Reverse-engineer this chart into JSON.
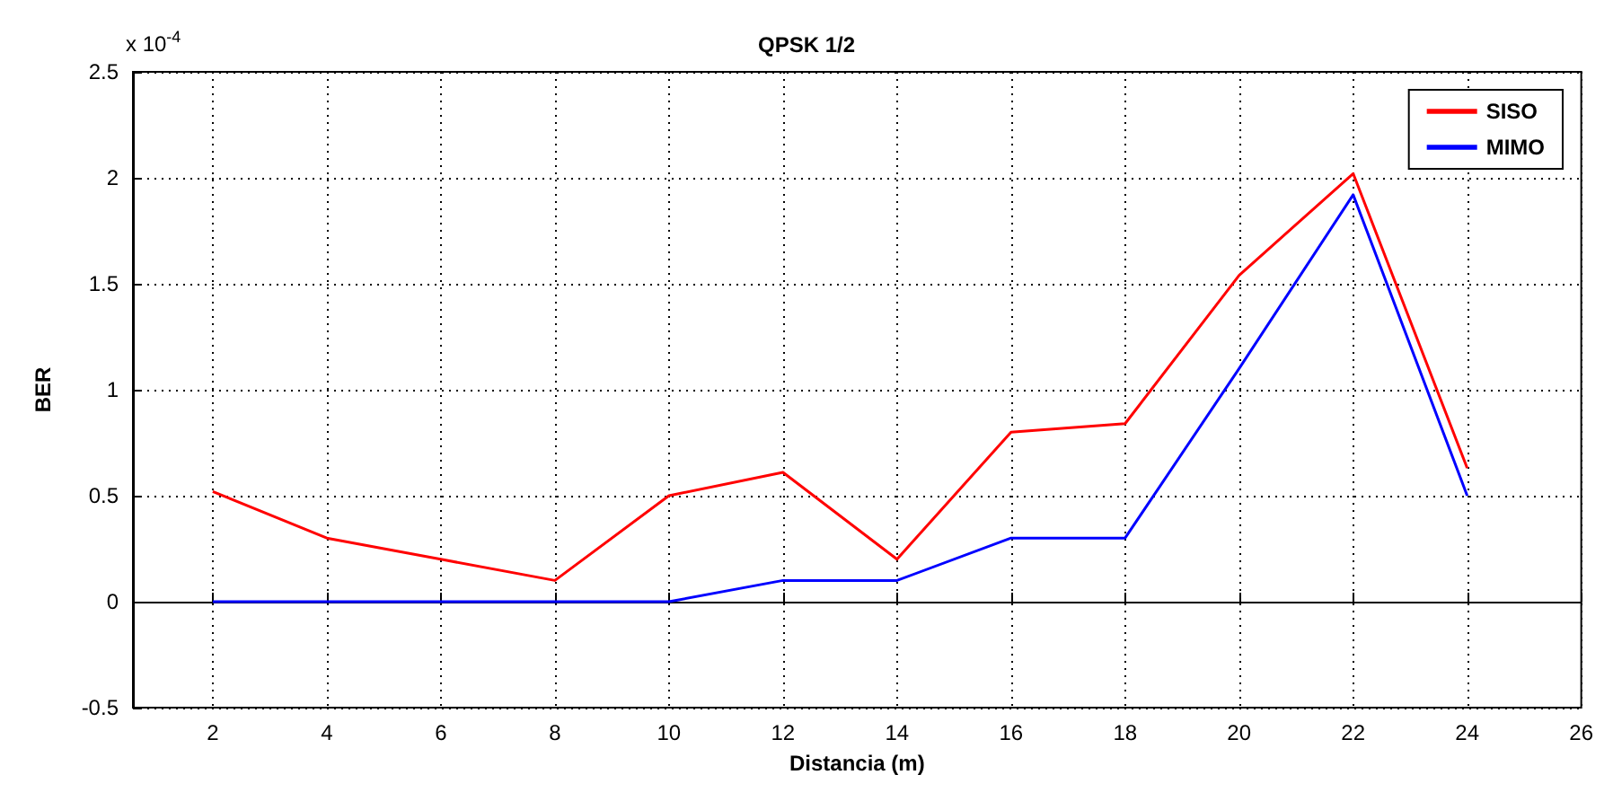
{
  "chart_data": {
    "type": "line",
    "title": "QPSK 1/2",
    "xlabel": "Distancia (m)",
    "ylabel": "BER",
    "annotations": [
      "x 10$^{-4}$"
    ],
    "x": [
      2,
      4,
      6,
      8,
      10,
      12,
      14,
      16,
      18,
      20,
      22,
      24
    ],
    "series": [
      {
        "name": "SISO",
        "color": "#ff0000",
        "values": [
          0.52,
          0.3,
          0.2,
          0.1,
          0.5,
          0.61,
          0.2,
          0.8,
          0.84,
          1.54,
          2.02,
          0.63
        ]
      },
      {
        "name": "MIMO",
        "color": "#0000ff",
        "values": [
          0,
          0,
          0,
          0,
          0,
          0.1,
          0.1,
          0.3,
          0.3,
          1.1,
          1.92,
          0.5
        ]
      }
    ],
    "xlim": [
      0.6,
      26
    ],
    "xticks": [
      2,
      4,
      6,
      8,
      10,
      12,
      14,
      16,
      18,
      20,
      22,
      24,
      26
    ],
    "ylim": [
      -0.5,
      2.5
    ],
    "yticks": [
      -0.5,
      0,
      0.5,
      1,
      1.5,
      2,
      2.5
    ],
    "grid": true,
    "legend": "top right",
    "marker": "none",
    "line_style": "solid"
  }
}
